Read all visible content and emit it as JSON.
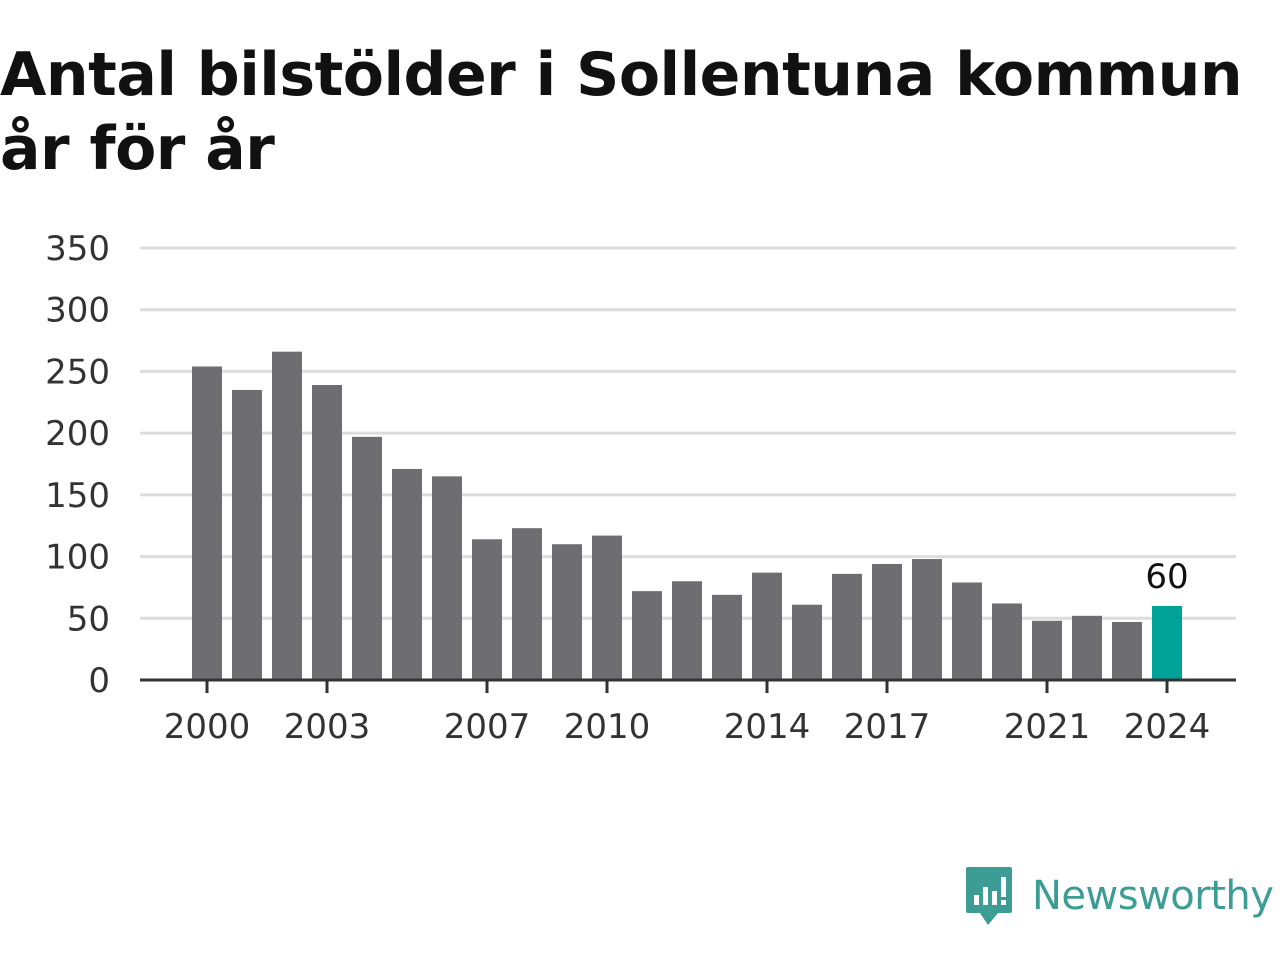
{
  "colors": {
    "bar": "#6e6d72",
    "highlight": "#00a297",
    "grid": "#dddddd",
    "axis": "#333333",
    "brand": "#3c9d94"
  },
  "brand": {
    "name": "Newsworthy",
    "icon": "newsworthy-logo-icon"
  },
  "chart_data": {
    "type": "bar",
    "title": "Antal bilstölder i Sollentuna kommun år för år",
    "xlabel": "",
    "ylabel": "",
    "categories": [
      2000,
      2001,
      2002,
      2003,
      2004,
      2005,
      2006,
      2007,
      2008,
      2009,
      2010,
      2011,
      2012,
      2013,
      2014,
      2015,
      2016,
      2017,
      2018,
      2019,
      2020,
      2021,
      2022,
      2023,
      2024
    ],
    "values": [
      254,
      235,
      266,
      239,
      197,
      171,
      165,
      114,
      123,
      110,
      117,
      72,
      80,
      69,
      87,
      61,
      86,
      94,
      98,
      79,
      62,
      48,
      52,
      47,
      60
    ],
    "highlight_index": 24,
    "highlight_label": "60",
    "ylim": [
      0,
      350
    ],
    "yticks": [
      0,
      50,
      100,
      150,
      200,
      250,
      300,
      350
    ],
    "xticks": [
      "2000",
      "2003",
      "2007",
      "2010",
      "2014",
      "2017",
      "2021",
      "2024"
    ],
    "grid": true,
    "legend": "none"
  }
}
